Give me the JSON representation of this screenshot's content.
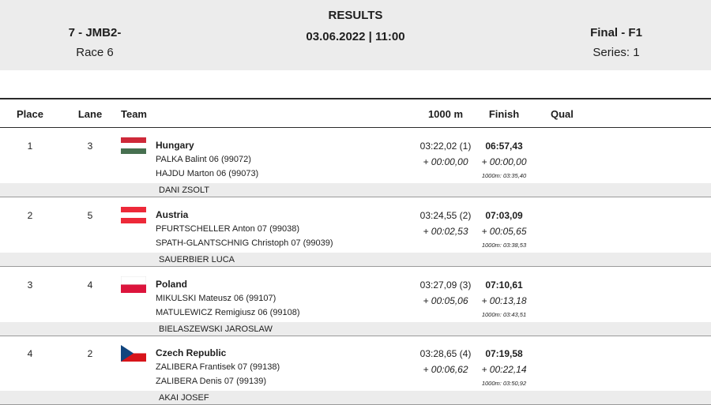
{
  "header": {
    "event": "7 - JMB2-",
    "race": "Race 6",
    "title": "RESULTS",
    "date": "03.06.2022 | 11:00",
    "final": "Final - F1",
    "series": "Series: 1"
  },
  "columns": {
    "place": "Place",
    "lane": "Lane",
    "team": "Team",
    "split": "1000 m",
    "finish": "Finish",
    "qual": "Qual"
  },
  "rows": [
    {
      "place": "1",
      "lane": "3",
      "flag_icon": "flag-hungary-icon",
      "flag_colors": [
        "#ce2939",
        "#ffffff",
        "#477050"
      ],
      "country": "Hungary",
      "crew": [
        "PALKA  Balint 06 (99072)",
        "HAJDU  Marton 06 (99073)"
      ],
      "coach": "DANI ZSOLT",
      "split_time": "03:22,02 (1)",
      "split_diff": "+ 00:00,00",
      "finish_time": "06:57,43",
      "finish_diff": "+ 00:00,00",
      "finish_split": "1000m: 03:35,40"
    },
    {
      "place": "2",
      "lane": "5",
      "flag_icon": "flag-austria-icon",
      "flag_colors": [
        "#ed2939",
        "#ffffff",
        "#ed2939"
      ],
      "country": "Austria",
      "crew": [
        "PFURTSCHELLER  Anton 07 (99038)",
        "SPATH-GLANTSCHNIG  Christoph 07 (99039)"
      ],
      "coach": "SAUERBIER LUCA",
      "split_time": "03:24,55 (2)",
      "split_diff": "+ 00:02,53",
      "finish_time": "07:03,09",
      "finish_diff": "+ 00:05,65",
      "finish_split": "1000m: 03:38,53"
    },
    {
      "place": "3",
      "lane": "4",
      "flag_icon": "flag-poland-icon",
      "flag_colors": [
        "#ffffff",
        "#dc143c"
      ],
      "country": "Poland",
      "crew": [
        "MIKULSKI  Mateusz 06 (99107)",
        "MATULEWICZ  Remigiusz 06 (99108)"
      ],
      "coach": "BIELASZEWSKI JAROSLAW",
      "split_time": "03:27,09 (3)",
      "split_diff": "+ 00:05,06",
      "finish_time": "07:10,61",
      "finish_diff": "+ 00:13,18",
      "finish_split": "1000m: 03:43,51"
    },
    {
      "place": "4",
      "lane": "2",
      "flag_icon": "flag-czech-republic-icon",
      "flag_colors": [
        "#ffffff",
        "#d7141a",
        "#11457e"
      ],
      "country": "Czech Republic",
      "crew": [
        "ZALIBERA  Frantisek 07 (99138)",
        "ZALIBERA  Denis 07 (99139)"
      ],
      "coach": "AKAI JOSEF",
      "split_time": "03:28,65 (4)",
      "split_diff": "+ 00:06,62",
      "finish_time": "07:19,58",
      "finish_diff": "+ 00:22,14",
      "finish_split": "1000m: 03:50,92"
    }
  ]
}
